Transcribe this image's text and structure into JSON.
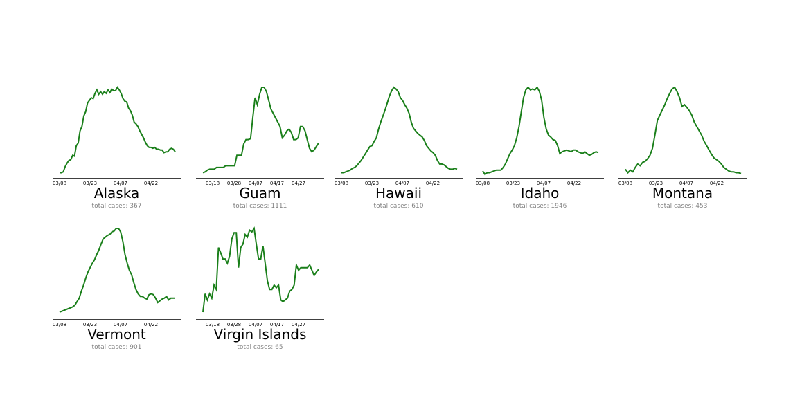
{
  "line_color": "#1a7f1a",
  "chart_data": [
    {
      "type": "line",
      "title": "Alaska",
      "subtitle": "total cases: 367",
      "xticks": [
        "03/08",
        "03/23",
        "04/07",
        "04/22"
      ],
      "values": [
        0.02,
        0.02,
        0.03,
        0.09,
        0.13,
        0.16,
        0.17,
        0.22,
        0.21,
        0.33,
        0.36,
        0.5,
        0.55,
        0.67,
        0.72,
        0.82,
        0.85,
        0.88,
        0.87,
        0.93,
        0.97,
        0.92,
        0.95,
        0.92,
        0.95,
        0.93,
        0.97,
        0.94,
        0.98,
        0.96,
        0.96,
        1.0,
        0.97,
        0.93,
        0.87,
        0.84,
        0.83,
        0.76,
        0.73,
        0.68,
        0.6,
        0.58,
        0.55,
        0.5,
        0.46,
        0.42,
        0.37,
        0.33,
        0.31,
        0.31,
        0.3,
        0.31,
        0.29,
        0.29,
        0.28,
        0.28,
        0.25,
        0.26,
        0.26,
        0.29,
        0.3,
        0.29,
        0.26
      ]
    },
    {
      "type": "line",
      "title": "Guam",
      "subtitle": "total cases: 1111",
      "xticks": [
        "03/18",
        "03/28",
        "04/07",
        "04/17",
        "04/27"
      ],
      "values": [
        0.02,
        0.03,
        0.05,
        0.06,
        0.06,
        0.06,
        0.08,
        0.08,
        0.08,
        0.08,
        0.1,
        0.1,
        0.1,
        0.1,
        0.1,
        0.22,
        0.22,
        0.22,
        0.35,
        0.4,
        0.4,
        0.41,
        0.65,
        0.88,
        0.8,
        0.92,
        1.0,
        1.0,
        0.95,
        0.85,
        0.75,
        0.7,
        0.65,
        0.6,
        0.55,
        0.42,
        0.45,
        0.5,
        0.52,
        0.48,
        0.4,
        0.4,
        0.42,
        0.55,
        0.55,
        0.5,
        0.4,
        0.3,
        0.26,
        0.28,
        0.32,
        0.36
      ]
    },
    {
      "type": "line",
      "title": "Hawaii",
      "subtitle": "total cases: 610",
      "xticks": [
        "03/08",
        "03/23",
        "04/07",
        "04/22"
      ],
      "values": [
        0.02,
        0.02,
        0.03,
        0.04,
        0.05,
        0.07,
        0.08,
        0.1,
        0.13,
        0.16,
        0.2,
        0.24,
        0.28,
        0.32,
        0.33,
        0.38,
        0.42,
        0.52,
        0.6,
        0.67,
        0.74,
        0.82,
        0.9,
        0.96,
        1.0,
        0.98,
        0.95,
        0.88,
        0.85,
        0.8,
        0.76,
        0.7,
        0.6,
        0.53,
        0.5,
        0.47,
        0.45,
        0.43,
        0.39,
        0.33,
        0.3,
        0.27,
        0.25,
        0.22,
        0.16,
        0.12,
        0.12,
        0.11,
        0.09,
        0.07,
        0.06,
        0.06,
        0.07,
        0.06
      ]
    },
    {
      "type": "line",
      "title": "Idaho",
      "subtitle": "total cases: 1946",
      "xticks": [
        "03/08",
        "03/23",
        "04/07",
        "04/22"
      ],
      "values": [
        0.04,
        0.0,
        0.02,
        0.02,
        0.03,
        0.04,
        0.05,
        0.05,
        0.05,
        0.08,
        0.12,
        0.18,
        0.24,
        0.28,
        0.33,
        0.42,
        0.55,
        0.72,
        0.88,
        0.97,
        1.0,
        0.97,
        0.98,
        0.97,
        1.0,
        0.95,
        0.85,
        0.65,
        0.52,
        0.45,
        0.43,
        0.4,
        0.39,
        0.33,
        0.24,
        0.26,
        0.27,
        0.28,
        0.27,
        0.26,
        0.28,
        0.28,
        0.26,
        0.25,
        0.24,
        0.26,
        0.24,
        0.22,
        0.23,
        0.25,
        0.26,
        0.25
      ]
    },
    {
      "type": "line",
      "title": "Montana",
      "subtitle": "total cases: 453",
      "xticks": [
        "03/08",
        "03/23",
        "04/07",
        "04/22"
      ],
      "values": [
        0.06,
        0.02,
        0.05,
        0.03,
        0.08,
        0.12,
        0.1,
        0.14,
        0.15,
        0.18,
        0.22,
        0.3,
        0.45,
        0.62,
        0.68,
        0.74,
        0.8,
        0.87,
        0.93,
        0.98,
        1.0,
        0.95,
        0.88,
        0.78,
        0.8,
        0.77,
        0.73,
        0.68,
        0.6,
        0.55,
        0.5,
        0.45,
        0.38,
        0.33,
        0.28,
        0.23,
        0.19,
        0.17,
        0.15,
        0.12,
        0.08,
        0.06,
        0.04,
        0.03,
        0.03,
        0.02,
        0.02,
        0.01
      ]
    },
    {
      "type": "line",
      "title": "Vermont",
      "subtitle": "total cases: 901",
      "xticks": [
        "03/08",
        "03/23",
        "04/07",
        "04/22"
      ],
      "values": [
        0.04,
        0.05,
        0.06,
        0.07,
        0.08,
        0.09,
        0.1,
        0.12,
        0.16,
        0.2,
        0.28,
        0.35,
        0.43,
        0.5,
        0.55,
        0.6,
        0.64,
        0.7,
        0.75,
        0.82,
        0.88,
        0.9,
        0.92,
        0.93,
        0.96,
        0.97,
        1.0,
        1.0,
        0.96,
        0.85,
        0.7,
        0.6,
        0.52,
        0.47,
        0.38,
        0.3,
        0.25,
        0.22,
        0.22,
        0.2,
        0.19,
        0.24,
        0.25,
        0.24,
        0.2,
        0.15,
        0.17,
        0.19,
        0.2,
        0.22,
        0.18,
        0.2,
        0.2,
        0.2
      ]
    },
    {
      "type": "line",
      "title": "Virgin Islands",
      "subtitle": "total cases: 65",
      "xticks": [
        "03/18",
        "03/28",
        "04/07",
        "04/17",
        "04/27"
      ],
      "values": [
        0.04,
        0.25,
        0.18,
        0.25,
        0.2,
        0.35,
        0.3,
        0.78,
        0.72,
        0.65,
        0.65,
        0.6,
        0.68,
        0.88,
        0.95,
        0.95,
        0.55,
        0.78,
        0.82,
        0.93,
        0.9,
        0.98,
        0.96,
        1.0,
        0.82,
        0.65,
        0.65,
        0.8,
        0.6,
        0.4,
        0.3,
        0.3,
        0.35,
        0.32,
        0.35,
        0.18,
        0.16,
        0.18,
        0.2,
        0.28,
        0.3,
        0.35,
        0.58,
        0.52,
        0.55,
        0.55,
        0.55,
        0.55,
        0.58,
        0.52,
        0.46,
        0.5,
        0.53
      ]
    }
  ]
}
